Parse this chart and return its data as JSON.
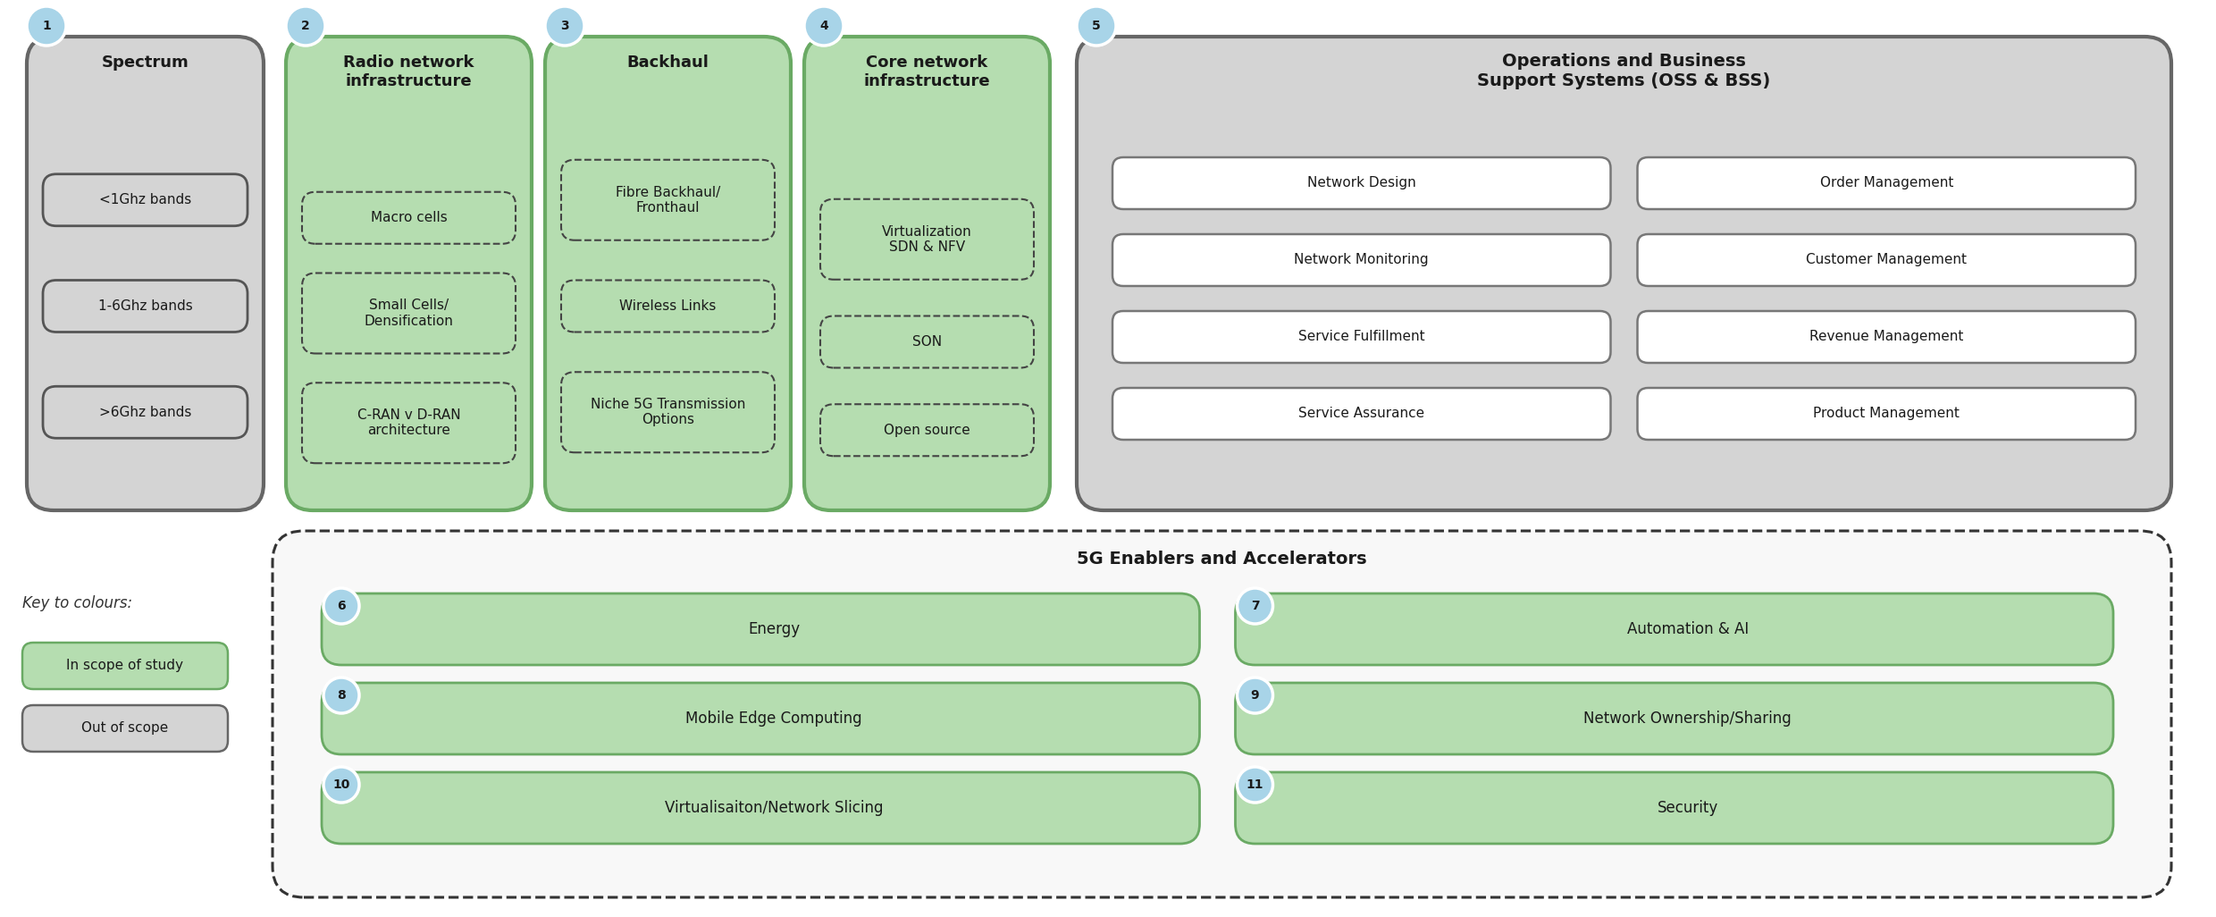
{
  "bg_color": "#ffffff",
  "green_fill": "#b5ddb0",
  "green_border": "#6aaa64",
  "gray_fill": "#d4d4d4",
  "gray_border": "#666666",
  "white_fill": "#ffffff",
  "dashed_color": "#444444",
  "circle_fill": "#a8d4e8",
  "circle_border": "#ffffff",
  "top_boxes": [
    {
      "num": "1",
      "title": "Spectrum",
      "color": "gray",
      "items": [
        "<1Ghz bands",
        "1-6Ghz bands",
        ">6Ghz bands"
      ],
      "item_color": "gray_solid"
    },
    {
      "num": "2",
      "title": "Radio network\ninfrastructure",
      "color": "green",
      "items": [
        "Macro cells",
        "Small Cells/\nDensification",
        "C-RAN v D-RAN\narchitecture"
      ],
      "item_color": "green_dashed"
    },
    {
      "num": "3",
      "title": "Backhaul",
      "color": "green",
      "items": [
        "Fibre Backhaul/\nFronthaul",
        "Wireless Links",
        "Niche 5G Transmission\nOptions"
      ],
      "item_color": "green_dashed"
    },
    {
      "num": "4",
      "title": "Core network\ninfrastructure",
      "color": "green",
      "items": [
        "Virtualization\nSDN & NFV",
        "SON",
        "Open source"
      ],
      "item_color": "green_dashed"
    }
  ],
  "oss_box": {
    "num": "5",
    "title": "Operations and Business\nSupport Systems (OSS & BSS)",
    "color": "gray",
    "items": [
      [
        "Network Design",
        "Order Management"
      ],
      [
        "Network Monitoring",
        "Customer Management"
      ],
      [
        "Service Fulfillment",
        "Revenue Management"
      ],
      [
        "Service Assurance",
        "Product Management"
      ]
    ]
  },
  "enablers_title": "5G Enablers and Accelerators",
  "enablers": [
    [
      {
        "num": "6",
        "label": "Energy"
      },
      {
        "num": "7",
        "label": "Automation & AI"
      }
    ],
    [
      {
        "num": "8",
        "label": "Mobile Edge Computing"
      },
      {
        "num": "9",
        "label": "Network Ownership/Sharing"
      }
    ],
    [
      {
        "num": "10",
        "label": "Virtualisaiton/Network Slicing"
      },
      {
        "num": "11",
        "label": "Security"
      }
    ]
  ],
  "legend_title": "Key to colours:",
  "legend_items": [
    {
      "label": "In scope of study",
      "color": "green"
    },
    {
      "label": "Out of scope",
      "color": "gray"
    }
  ]
}
